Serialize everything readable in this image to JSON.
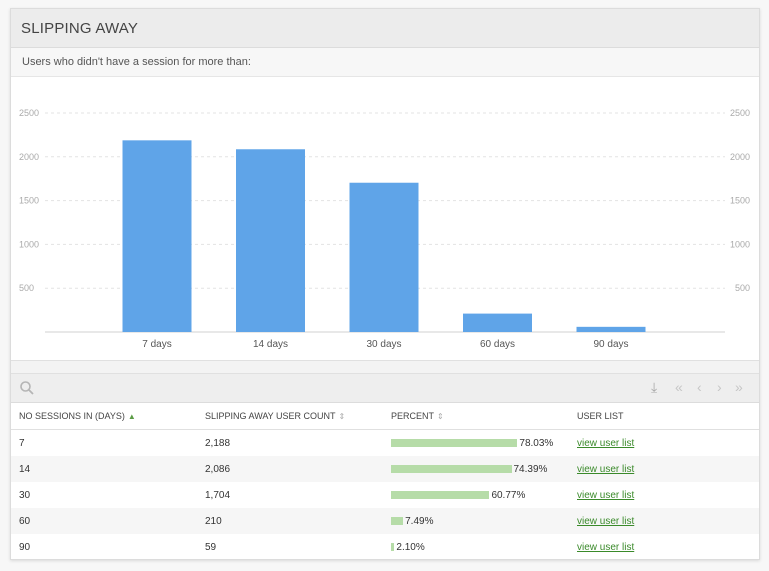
{
  "panel": {
    "title": "SLIPPING AWAY",
    "subtitle": "Users who didn't have a session for more than:"
  },
  "chart_data": {
    "type": "bar",
    "categories": [
      "7 days",
      "14 days",
      "30 days",
      "60 days",
      "90 days"
    ],
    "values": [
      2188,
      2086,
      1704,
      210,
      59
    ],
    "y_ticks": [
      500,
      1000,
      1500,
      2000,
      2500
    ],
    "ylim": [
      0,
      2500
    ],
    "grid": true,
    "bar_color": "#5fa4e8"
  },
  "table": {
    "columns": [
      {
        "label": "NO SESSIONS IN (DAYS)",
        "sort": "▲"
      },
      {
        "label": "SLIPPING AWAY USER COUNT",
        "sort": "⇕"
      },
      {
        "label": "PERCENT",
        "sort": "⇕"
      },
      {
        "label": "USER LIST",
        "sort": ""
      }
    ],
    "rows": [
      {
        "days": "7",
        "count": "2,188",
        "percent": 78.03,
        "percent_text": "78.03%",
        "link": "view user list"
      },
      {
        "days": "14",
        "count": "2,086",
        "percent": 74.39,
        "percent_text": "74.39%",
        "link": "view user list"
      },
      {
        "days": "30",
        "count": "1,704",
        "percent": 60.77,
        "percent_text": "60.77%",
        "link": "view user list"
      },
      {
        "days": "60",
        "count": "210",
        "percent": 7.49,
        "percent_text": "7.49%",
        "link": "view user list"
      },
      {
        "days": "90",
        "count": "59",
        "percent": 2.1,
        "percent_text": "2.10%",
        "link": "view user list"
      }
    ]
  },
  "toolbar": {
    "icons": [
      "search-icon",
      "download-icon",
      "first-page-icon",
      "prev-page-icon",
      "next-page-icon",
      "last-page-icon"
    ]
  },
  "colors": {
    "bar": "#5fa4e8",
    "percent_bar": "#b6dca8",
    "link": "#3a8a2a",
    "sort_active": "#5b9c45"
  }
}
